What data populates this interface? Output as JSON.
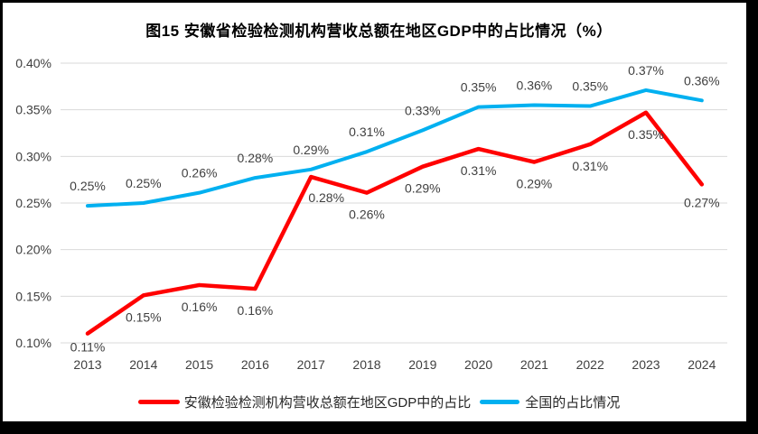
{
  "frame": {
    "border_color": "#000000",
    "background": "#ffffff"
  },
  "chart_data": {
    "type": "line",
    "title": "图15 安徽省检验检测机构营收总额在地区GDP中的占比情况（%）",
    "categories": [
      "2013",
      "2014",
      "2015",
      "2016",
      "2017",
      "2018",
      "2019",
      "2020",
      "2021",
      "2022",
      "2023",
      "2024"
    ],
    "series": [
      {
        "name": "安徽检验检测机构营收总额在地区GDP中的占比",
        "color": "#FF0000",
        "values": [
          0.11,
          0.151,
          0.162,
          0.158,
          0.278,
          0.261,
          0.289,
          0.308,
          0.294,
          0.313,
          0.347,
          0.27
        ],
        "labels": [
          "0.11%",
          "0.15%",
          "0.16%",
          "0.16%",
          "0.28%",
          "0.26%",
          "0.29%",
          "0.31%",
          "0.29%",
          "0.31%",
          "0.35%",
          "0.27%"
        ],
        "label_position": "below"
      },
      {
        "name": "全国的占比情况",
        "color": "#00B0F0",
        "values": [
          0.247,
          0.25,
          0.261,
          0.277,
          0.286,
          0.305,
          0.328,
          0.353,
          0.355,
          0.354,
          0.371,
          0.36
        ],
        "labels": [
          "0.25%",
          "0.25%",
          "0.26%",
          "0.28%",
          "0.29%",
          "0.31%",
          "0.33%",
          "0.35%",
          "0.36%",
          "0.35%",
          "0.37%",
          "0.36%"
        ],
        "label_position": "above"
      }
    ],
    "y_axis": {
      "min": 0.1,
      "max": 0.4,
      "step": 0.05,
      "tick_labels": [
        "0.10%",
        "0.15%",
        "0.20%",
        "0.25%",
        "0.30%",
        "0.35%",
        "0.40%"
      ]
    },
    "x_axis_label": "",
    "grid": true,
    "grid_color": "#D9D9D9",
    "text_color": "#404040",
    "legend_position": "bottom"
  }
}
